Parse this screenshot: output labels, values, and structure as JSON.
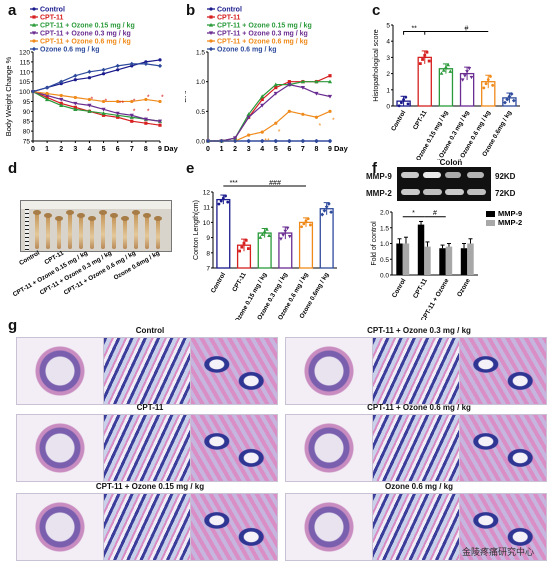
{
  "panel_letters": {
    "a": "a",
    "b": "b",
    "c": "c",
    "d": "d",
    "e": "e",
    "f": "f",
    "g": "g"
  },
  "colors": {
    "control": "#1a1a8c",
    "cpt11": "#d62020",
    "oz015": "#2a9a3a",
    "oz03": "#6a2d91",
    "oz06": "#f08a1a",
    "ozone": "#2d4a9c",
    "mmp9": "#000000",
    "mmp2": "#a8a8a8"
  },
  "legend": [
    {
      "label": "Control",
      "color": "#1a1a8c"
    },
    {
      "label": "CPT-11",
      "color": "#d62020"
    },
    {
      "label": "CPT-11 + Ozone 0.15 mg / kg",
      "color": "#2a9a3a"
    },
    {
      "label": "CPT-11 + Ozone 0.3 mg / kg",
      "color": "#6a2d91"
    },
    {
      "label": "CPT-11 + Ozone 0.6 mg / kg",
      "color": "#f08a1a"
    },
    {
      "label": "Ozone 0.6 mg / kg",
      "color": "#2d4a9c"
    }
  ],
  "group_ticks": [
    "Control",
    "CPT-11",
    "CPT-11 + Ozone 0.15 mg / kg",
    "CPT-11 + Ozone 0.3 mg / kg",
    "CPT-11 + Ozone 0.6 mg / kg",
    "Ozone 0.6mg / kg"
  ],
  "chart_data": [
    {
      "panel": "a",
      "type": "line",
      "xlabel": "Day",
      "ylabel": "Body Weight Change %",
      "x": [
        0,
        1,
        2,
        3,
        4,
        5,
        6,
        7,
        8,
        9
      ],
      "xlim": [
        0,
        9
      ],
      "ylim": [
        75,
        120
      ],
      "yticks": [
        75,
        80,
        85,
        90,
        95,
        100,
        105,
        110,
        115,
        120
      ],
      "series": [
        {
          "name": "Control",
          "values": [
            100,
            102,
            104,
            106,
            107,
            109,
            111,
            113,
            115,
            116
          ]
        },
        {
          "name": "CPT-11",
          "values": [
            100,
            97,
            94,
            92,
            90,
            88,
            87,
            85,
            84,
            83
          ]
        },
        {
          "name": "CPT-11 + Ozone 0.15 mg / kg",
          "values": [
            100,
            96,
            93,
            91,
            90,
            89,
            88,
            87,
            86,
            85
          ]
        },
        {
          "name": "CPT-11 + Ozone 0.3 mg / kg",
          "values": [
            100,
            98,
            96,
            94,
            93,
            91,
            89,
            88,
            86,
            85
          ]
        },
        {
          "name": "CPT-11 + Ozone 0.6 mg / kg",
          "values": [
            100,
            99,
            98,
            97,
            96,
            95,
            95,
            95,
            96,
            95
          ]
        },
        {
          "name": "Ozone 0.6 mg / kg",
          "values": [
            100,
            102,
            105,
            108,
            110,
            111,
            113,
            114,
            114,
            113
          ]
        }
      ],
      "annotations": [
        "*",
        "*",
        "**",
        "*",
        "*",
        "*",
        "*",
        "*"
      ]
    },
    {
      "panel": "b",
      "type": "line",
      "xlabel": "Day",
      "ylabel": "DAI",
      "x": [
        0,
        1,
        2,
        3,
        4,
        5,
        6,
        7,
        8,
        9
      ],
      "xlim": [
        0,
        9
      ],
      "ylim": [
        0,
        1.5
      ],
      "yticks": [
        0.0,
        0.5,
        1.0,
        1.5
      ],
      "series": [
        {
          "name": "Control",
          "values": [
            0,
            0,
            0,
            0,
            0,
            0,
            0,
            0,
            0,
            0
          ]
        },
        {
          "name": "CPT-11",
          "values": [
            0,
            0,
            0.05,
            0.4,
            0.7,
            0.9,
            1.0,
            1.0,
            1.0,
            1.1
          ]
        },
        {
          "name": "CPT-11 + Ozone 0.15 mg / kg",
          "values": [
            0,
            0,
            0.05,
            0.45,
            0.75,
            0.95,
            0.95,
            1.0,
            1.0,
            1.0
          ]
        },
        {
          "name": "CPT-11 + Ozone 0.3 mg / kg",
          "values": [
            0,
            0,
            0.05,
            0.4,
            0.6,
            0.8,
            0.95,
            0.9,
            0.8,
            0.75
          ]
        },
        {
          "name": "CPT-11 + Ozone 0.6 mg / kg",
          "values": [
            0,
            0,
            0,
            0.1,
            0.15,
            0.3,
            0.5,
            0.45,
            0.4,
            0.5
          ]
        },
        {
          "name": "Ozone 0.6 mg / kg",
          "values": [
            0,
            0,
            0,
            0,
            0,
            0,
            0,
            0,
            0,
            0
          ]
        }
      ],
      "annotations": [
        "**",
        "*",
        "*",
        "*"
      ]
    },
    {
      "panel": "c",
      "type": "bar",
      "ylabel": "Histopathological score",
      "categories": [
        "Control",
        "CPT-11",
        "CPT-11 + Ozone 0.15 mg / kg",
        "CPT-11 + Ozone 0.3 mg / kg",
        "CPT-11 + Ozone 0.6 mg / kg",
        "Ozone 0.6mg / kg"
      ],
      "values": [
        0.3,
        3.0,
        2.3,
        2.0,
        1.5,
        0.5
      ],
      "errors": [
        0.3,
        0.4,
        0.3,
        0.4,
        0.4,
        0.3
      ],
      "ylim": [
        0,
        5
      ],
      "yticks": [
        0,
        1,
        2,
        3,
        4,
        5
      ],
      "annotations": [
        "**",
        "#"
      ]
    },
    {
      "panel": "e",
      "type": "bar",
      "ylabel": "Conton Length(cm)",
      "categories": [
        "Control",
        "CPT-11",
        "CPT-11 + Ozone 0.15 mg / kg",
        "CPT-11 + Ozone 0.3 mg / kg",
        "CPT-11 + Ozone 0.6 mg / kg",
        "Ozone 0.6mg / kg"
      ],
      "values": [
        11.5,
        8.5,
        9.3,
        9.3,
        10.0,
        10.9
      ],
      "errors": [
        0.3,
        0.4,
        0.3,
        0.4,
        0.3,
        0.4
      ],
      "ylim": [
        7,
        12
      ],
      "yticks": [
        7,
        8,
        9,
        10,
        11,
        12
      ],
      "annotations": [
        "***",
        "###"
      ]
    },
    {
      "panel": "f",
      "type": "bar",
      "ylabel": "Fold of control",
      "categories": [
        "Conrol",
        "CPT-11",
        "CPT-11 + Ozone",
        "Ozone"
      ],
      "series": [
        {
          "name": "MMP-9",
          "values": [
            1.0,
            1.6,
            0.85,
            0.85
          ],
          "errors": [
            0.15,
            0.1,
            0.1,
            0.15
          ]
        },
        {
          "name": "MMP-2",
          "values": [
            1.0,
            0.9,
            0.9,
            1.0
          ],
          "errors": [
            0.2,
            0.15,
            0.1,
            0.15
          ]
        }
      ],
      "ylim": [
        0,
        2.0
      ],
      "yticks": [
        0.0,
        0.5,
        1.0,
        1.5,
        2.0
      ],
      "annotations": [
        "*",
        "#"
      ]
    }
  ],
  "blot": {
    "title": "Colon",
    "rows": [
      {
        "name": "MMP-9",
        "kd": "92KD"
      },
      {
        "name": "MMP-2",
        "kd": "72KD"
      }
    ]
  },
  "panel_d": {
    "sample_count": 12
  },
  "histology": [
    {
      "title": "Control"
    },
    {
      "title": "CPT-11 + Ozone 0.3 mg / kg"
    },
    {
      "title": "CPT-11"
    },
    {
      "title": "CPT-11 + Ozone 0.6 mg / kg"
    },
    {
      "title": "CPT-11 + Ozone 0.15 mg / kg"
    },
    {
      "title": "Ozone 0.6 mg / kg"
    }
  ],
  "watermark": "金陵疼痛研究中心"
}
